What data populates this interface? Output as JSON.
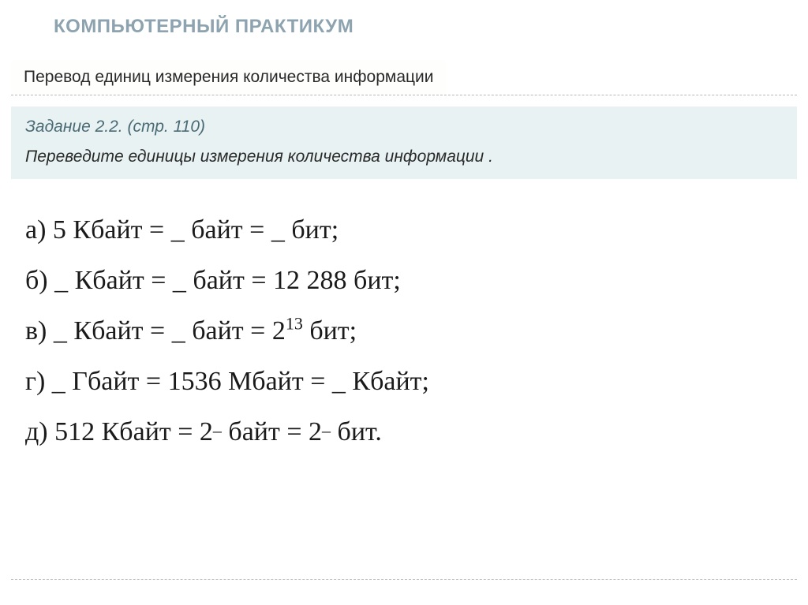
{
  "colors": {
    "heading": "#8da3b0",
    "subtitle_bg": "#fefefc",
    "task_bg": "#e8f2f2",
    "task_ref": "#4a6a75",
    "text": "#2a2a2a",
    "problem_text": "#1a1a1a",
    "divider": "#b8b8b8",
    "page_bg": "#ffffff"
  },
  "typography": {
    "heading_size": 24,
    "subtitle_size": 21,
    "task_size": 21,
    "problem_size": 34,
    "sup_size": 22,
    "heading_font": "Arial",
    "body_font": "Arial",
    "problem_font": "Times New Roman"
  },
  "heading": "КОМПЬЮТЕРНЫЙ ПРАКТИКУМ",
  "subtitle": "Перевод единиц измерения количества информации",
  "task": {
    "ref": "Задание 2.2. (стр. 110)",
    "text": "Переведите  единицы измерения количества информации ."
  },
  "problems": {
    "a_label": "а) ",
    "a_v1": "5",
    "a_u1": " Кбайт = ",
    "a_v2": "_",
    "a_u2": "  байт = ",
    "a_v3": "_",
    "a_u3": " бит;",
    "b_label": "б) ",
    "b_v1": "_",
    "b_u1": "  Кбайт = ",
    "b_v2": "_",
    "b_u2": " байт = ",
    "b_v3": "12 288",
    "b_u3": " бит;",
    "c_label": "в) ",
    "c_v1": "_",
    "c_u1": "  Кбайт = ",
    "c_v2": "_",
    "c_u2": " байт = ",
    "c_base": "2",
    "c_exp": "13",
    "c_u3": " бит;",
    "d_label": "г) ",
    "d_v1": "_",
    "d_u1": "  Гбайт = ",
    "d_v2": "1536",
    "d_u2": " Мбайт = ",
    "d_v3": "_",
    "d_u3": " Кбайт;",
    "e_label": "д) ",
    "e_v1": "512",
    "e_u1": " Кбайт = ",
    "e_base2": "2",
    "e_exp2": "_",
    "e_u2": " байт = ",
    "e_base3": "2",
    "e_exp3": "_",
    "e_u3": " бит."
  }
}
